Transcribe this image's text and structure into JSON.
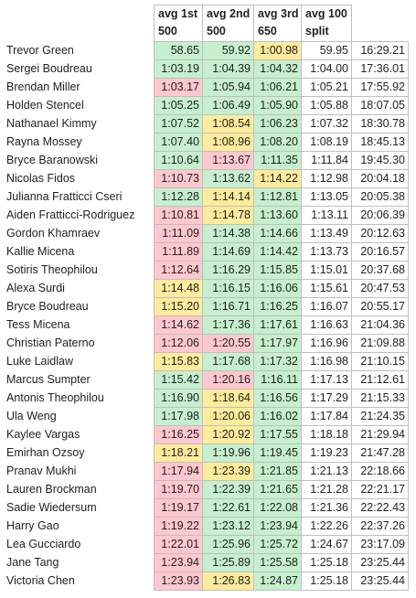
{
  "table": {
    "headers": [
      [
        "avg 1st",
        "500"
      ],
      [
        "avg 2nd",
        "500"
      ],
      [
        "avg 3rd",
        "650"
      ],
      [
        "avg 100",
        "split"
      ]
    ],
    "rows": [
      [
        "Trevor Green",
        "58.65",
        "59.92",
        "1:00.98",
        "59.95",
        "16:29.21"
      ],
      [
        "Sergei Boudreau",
        "1:03.19",
        "1:04.39",
        "1:04.32",
        "1:04.00",
        "17:36.01"
      ],
      [
        "Brendan Miller",
        "1:03.17",
        "1:05.94",
        "1:06.21",
        "1:05.21",
        "17:55.92"
      ],
      [
        "Holden Stencel",
        "1:05.25",
        "1:06.49",
        "1:05.90",
        "1:05.88",
        "18:07.05"
      ],
      [
        "Nathanael Kimmy",
        "1:07.52",
        "1:08.54",
        "1:06.23",
        "1:07.32",
        "18:30.78"
      ],
      [
        "Rayna Mossey",
        "1:07.40",
        "1:08.96",
        "1:08.20",
        "1:08.19",
        "18:45.13"
      ],
      [
        "Bryce Baranowski",
        "1:10.64",
        "1:13.67",
        "1:11.35",
        "1:11.84",
        "19:45.30"
      ],
      [
        "Nicolas Fidos",
        "1:10.73",
        "1:13.62",
        "1:14.22",
        "1:12.98",
        "20:04.18"
      ],
      [
        "Julianna Fratticci Cseri",
        "1:12.28",
        "1:14.14",
        "1:12.81",
        "1:13.05",
        "20:05.38"
      ],
      [
        "Aiden Fratticci-Rodriguez",
        "1:10.81",
        "1:14.78",
        "1:13.60",
        "1:13.11",
        "20:06.39"
      ],
      [
        "Gordon Khamraev",
        "1:11.09",
        "1:14.38",
        "1:14.66",
        "1:13.49",
        "20:12.63"
      ],
      [
        "Kallie Micena",
        "1:11.89",
        "1:14.69",
        "1:14.42",
        "1:13.73",
        "20:16.57"
      ],
      [
        "Sotiris Theophilou",
        "1:12.64",
        "1:16.29",
        "1:15.85",
        "1:15.01",
        "20:37.68"
      ],
      [
        "Alexa Surdi",
        "1:14.48",
        "1:16.15",
        "1:16.06",
        "1:15.61",
        "20:47.53"
      ],
      [
        "Bryce Boudreau",
        "1:15.20",
        "1:16.71",
        "1:16.25",
        "1:16.07",
        "20:55.17"
      ],
      [
        "Tess Micena",
        "1:14.62",
        "1:17.36",
        "1:17.61",
        "1:16.63",
        "21:04.36"
      ],
      [
        "Christian Paterno",
        "1:12.06",
        "1:20.55",
        "1:17.97",
        "1:16.96",
        "21:09.88"
      ],
      [
        "Luke Laidlaw",
        "1:15.83",
        "1:17.68",
        "1:17.32",
        "1:16.98",
        "21:10.15"
      ],
      [
        "Marcus Sumpter",
        "1:15.42",
        "1:20.16",
        "1:16.11",
        "1:17.13",
        "21:12.61"
      ],
      [
        "Antonis Theophilou",
        "1:16.90",
        "1:18.64",
        "1:16.56",
        "1:17.29",
        "21:15.33"
      ],
      [
        "Ula Weng",
        "1:17.98",
        "1:20.06",
        "1:16.02",
        "1:17.84",
        "21:24.35"
      ],
      [
        "Kaylee Vargas",
        "1:16.25",
        "1:20.92",
        "1:17.55",
        "1:18.18",
        "21:29.94"
      ],
      [
        "Emirhan Ozsoy",
        "1:18.21",
        "1:19.96",
        "1:19.45",
        "1:19.23",
        "21:47.28"
      ],
      [
        "Pranav Mukhi",
        "1:17.94",
        "1:23.39",
        "1:21.85",
        "1:21.13",
        "22:18.66"
      ],
      [
        "Lauren Brockman",
        "1:19.70",
        "1:22.39",
        "1:21.65",
        "1:21.28",
        "22:21.17"
      ],
      [
        "Sadie Wiedersum",
        "1:19.17",
        "1:22.61",
        "1:22.08",
        "1:21.36",
        "22:22.43"
      ],
      [
        "Harry Gao",
        "1:19.22",
        "1:23.12",
        "1:23.94",
        "1:22.26",
        "22:37.26"
      ],
      [
        "Lea Gucciardo",
        "1:22.01",
        "1:25.96",
        "1:25.72",
        "1:24.67",
        "23:17.09"
      ],
      [
        "Jane Tang",
        "1:23.94",
        "1:25.89",
        "1:25.58",
        "1:25.18",
        "23:25.44"
      ],
      [
        "Victoria Chen",
        "1:23.93",
        "1:26.83",
        "1:24.87",
        "1:25.18",
        "23:25.44"
      ]
    ],
    "fills": [
      [
        "#c6efce",
        "#c6efce",
        "#ffeb9c"
      ],
      [
        "#c6efce",
        "#c6efce",
        "#c6efce"
      ],
      [
        "#ffc7ce",
        "#c6efce",
        "#c6efce"
      ],
      [
        "#c6efce",
        "#c6efce",
        "#c6efce"
      ],
      [
        "#c6efce",
        "#ffeb9c",
        "#c6efce"
      ],
      [
        "#c6efce",
        "#ffeb9c",
        "#c6efce"
      ],
      [
        "#c6efce",
        "#ffc7ce",
        "#c6efce"
      ],
      [
        "#ffc7ce",
        "#c6efce",
        "#ffeb9c"
      ],
      [
        "#c6efce",
        "#ffeb9c",
        "#c6efce"
      ],
      [
        "#ffc7ce",
        "#ffeb9c",
        "#c6efce"
      ],
      [
        "#ffc7ce",
        "#c6efce",
        "#c6efce"
      ],
      [
        "#ffc7ce",
        "#c6efce",
        "#c6efce"
      ],
      [
        "#ffc7ce",
        "#c6efce",
        "#c6efce"
      ],
      [
        "#ffeb9c",
        "#c6efce",
        "#c6efce"
      ],
      [
        "#ffeb9c",
        "#c6efce",
        "#c6efce"
      ],
      [
        "#ffc7ce",
        "#c6efce",
        "#c6efce"
      ],
      [
        "#ffc7ce",
        "#ffc7ce",
        "#c6efce"
      ],
      [
        "#ffeb9c",
        "#c6efce",
        "#c6efce"
      ],
      [
        "#c6efce",
        "#ffc7ce",
        "#c6efce"
      ],
      [
        "#c6efce",
        "#ffeb9c",
        "#c6efce"
      ],
      [
        "#c6efce",
        "#ffeb9c",
        "#c6efce"
      ],
      [
        "#ffc7ce",
        "#ffeb9c",
        "#c6efce"
      ],
      [
        "#ffeb9c",
        "#c6efce",
        "#c6efce"
      ],
      [
        "#ffc7ce",
        "#ffeb9c",
        "#c6efce"
      ],
      [
        "#ffc7ce",
        "#c6efce",
        "#c6efce"
      ],
      [
        "#ffc7ce",
        "#c6efce",
        "#c6efce"
      ],
      [
        "#ffc7ce",
        "#c6efce",
        "#c6efce"
      ],
      [
        "#ffc7ce",
        "#c6efce",
        "#c6efce"
      ],
      [
        "#ffc7ce",
        "#c6efce",
        "#c6efce"
      ],
      [
        "#ffc7ce",
        "#ffeb9c",
        "#c6efce"
      ]
    ]
  }
}
